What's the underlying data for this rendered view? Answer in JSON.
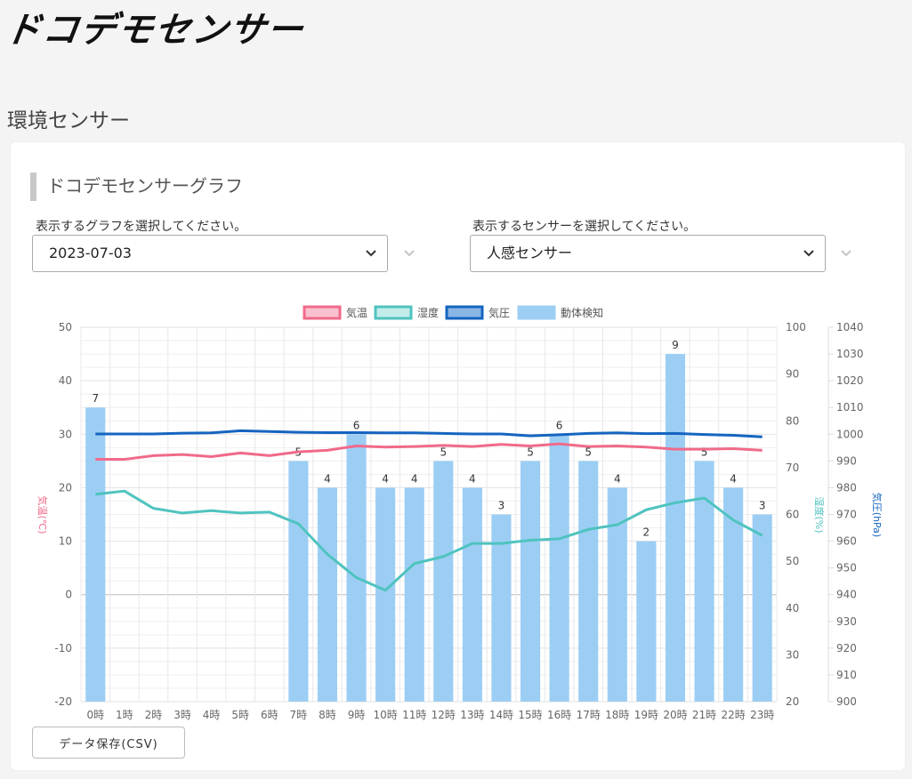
{
  "header": {
    "logo_text": "ドコデモセンサー"
  },
  "page": {
    "title": "環境センサー"
  },
  "card": {
    "heading": "ドコデモセンサーグラフ"
  },
  "controls": {
    "graph_select": {
      "label": "表示するグラフを選択してください。",
      "value": "2023-07-03"
    },
    "sensor_select": {
      "label": "表示するセンサーを選択してください。",
      "value": "人感センサー"
    }
  },
  "buttons": {
    "csv_label": "データ保存(CSV)"
  },
  "chart_data": {
    "type": "bar",
    "categories": [
      "0時",
      "1時",
      "2時",
      "3時",
      "4時",
      "5時",
      "6時",
      "7時",
      "8時",
      "9時",
      "10時",
      "11時",
      "12時",
      "13時",
      "14時",
      "15時",
      "16時",
      "17時",
      "18時",
      "19時",
      "20時",
      "21時",
      "22時",
      "23時"
    ],
    "legend": [
      {
        "name": "気温",
        "color": "#f06a8a",
        "fill": "#f9c1cf"
      },
      {
        "name": "湿度",
        "color": "#4fc3bf",
        "fill": "#c2ecea"
      },
      {
        "name": "気圧",
        "color": "#1565c0",
        "fill": "#8ab6e6"
      },
      {
        "name": "動体検知",
        "color": "#9ccef4",
        "fill": "#9ccef4"
      }
    ],
    "axes": {
      "left": {
        "label": "気温(℃)",
        "min": -20,
        "max": 50,
        "ticks": [
          -20,
          -10,
          0,
          10,
          20,
          30,
          40,
          50
        ],
        "color": "#f06a8a"
      },
      "mid": {
        "label": "湿度(%)",
        "min": 20,
        "max": 100,
        "ticks": [
          20,
          30,
          40,
          50,
          60,
          70,
          80,
          90,
          100
        ],
        "color": "#4fc3bf"
      },
      "right": {
        "label": "気圧(hPa)",
        "min": 900,
        "max": 1040,
        "ticks": [
          900,
          910,
          920,
          930,
          940,
          950,
          960,
          970,
          980,
          990,
          1000,
          1010,
          1020,
          1030,
          1040
        ],
        "color": "#1565c0"
      }
    },
    "series": [
      {
        "name": "気温",
        "axis": "left",
        "kind": "line",
        "color": "#f06a8a",
        "values": [
          25.3,
          25.3,
          26.0,
          26.2,
          25.8,
          26.5,
          26.0,
          26.7,
          27.0,
          27.8,
          27.6,
          27.7,
          27.9,
          27.7,
          28.1,
          27.8,
          28.2,
          27.7,
          27.8,
          27.6,
          27.2,
          27.2,
          27.3,
          27.0
        ]
      },
      {
        "name": "湿度",
        "axis": "mid",
        "kind": "line",
        "color": "#4fc3bf",
        "values": [
          64.3,
          65.0,
          61.3,
          60.3,
          60.8,
          60.3,
          60.5,
          58.0,
          51.5,
          46.5,
          43.8,
          49.5,
          51.0,
          53.8,
          53.8,
          54.5,
          54.8,
          56.8,
          57.8,
          61.0,
          62.5,
          63.5,
          58.8,
          55.5
        ]
      },
      {
        "name": "気圧",
        "axis": "right",
        "kind": "line",
        "color": "#1565c0",
        "values": [
          1000.1,
          1000.1,
          1000.1,
          1000.4,
          1000.5,
          1001.3,
          1001.0,
          1000.7,
          1000.6,
          1000.6,
          1000.5,
          1000.5,
          1000.3,
          1000.1,
          1000.1,
          999.4,
          999.8,
          1000.3,
          1000.5,
          1000.2,
          1000.3,
          999.9,
          999.6,
          999.0
        ]
      },
      {
        "name": "動体検知",
        "axis": "left",
        "kind": "bar",
        "color": "#9ccef4",
        "values": [
          7,
          null,
          null,
          null,
          null,
          null,
          null,
          5,
          4,
          6,
          4,
          4,
          5,
          4,
          3,
          5,
          6,
          5,
          4,
          2,
          9,
          5,
          4,
          3
        ],
        "labels": [
          "7",
          "",
          "",
          "",
          "",
          "",
          "",
          "5",
          "4",
          "6",
          "4",
          "4",
          "5",
          "4",
          "3",
          "5",
          "6",
          "5",
          "4",
          "2",
          "9",
          "5",
          "4",
          "3"
        ]
      }
    ],
    "grid": true,
    "legend_position": "top"
  }
}
